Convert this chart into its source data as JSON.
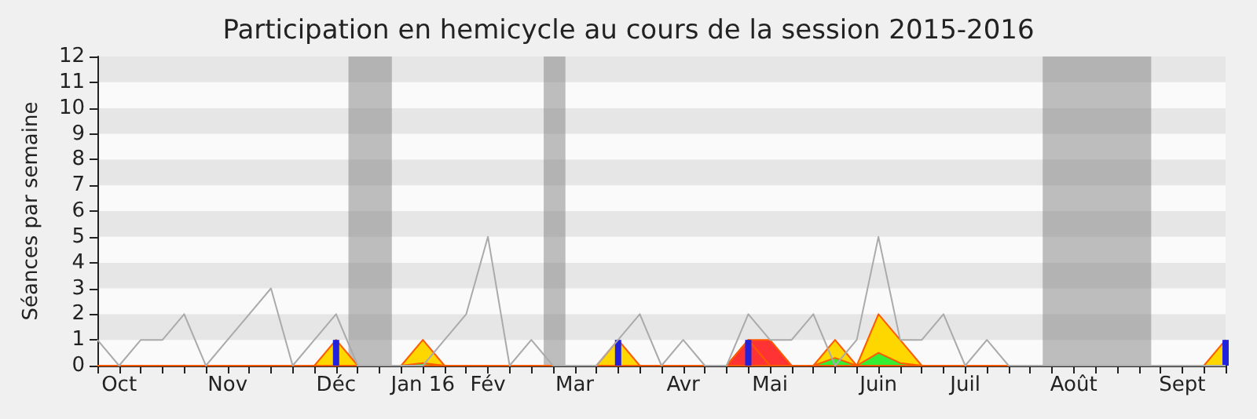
{
  "chart_data": {
    "type": "area",
    "title": "Participation en hemicycle au cours de la session 2015-2016",
    "ylabel": "Séances par semaine",
    "x": [
      "2015-09-29",
      "2015-10-06",
      "2015-10-13",
      "2015-10-20",
      "2015-10-27",
      "2015-11-03",
      "2015-11-10",
      "2015-11-17",
      "2015-11-24",
      "2015-12-01",
      "2015-12-08",
      "2015-12-15",
      "2015-12-22",
      "2015-12-29",
      "2016-01-05",
      "2016-01-12",
      "2016-01-19",
      "2016-01-26",
      "2016-02-02",
      "2016-02-09",
      "2016-02-16",
      "2016-02-23",
      "2016-03-01",
      "2016-03-08",
      "2016-03-15",
      "2016-03-22",
      "2016-03-29",
      "2016-04-05",
      "2016-04-12",
      "2016-04-19",
      "2016-04-26",
      "2016-05-03",
      "2016-05-10",
      "2016-05-17",
      "2016-05-24",
      "2016-05-31",
      "2016-06-07",
      "2016-06-14",
      "2016-06-21",
      "2016-06-28",
      "2016-07-05",
      "2016-07-12",
      "2016-07-19",
      "2016-07-26",
      "2016-08-02",
      "2016-08-09",
      "2016-08-16",
      "2016-08-23",
      "2016-08-30",
      "2016-09-06",
      "2016-09-13",
      "2016-09-20",
      "2016-09-27"
    ],
    "xlim": [
      "2015-09-29",
      "2016-09-27"
    ],
    "xticks": [
      {
        "value": "2015-09-29",
        "label": null
      },
      {
        "value": "2015-10-06",
        "label": "Oct"
      },
      {
        "value": "2015-10-13",
        "label": null
      },
      {
        "value": "2015-10-20",
        "label": null
      },
      {
        "value": "2015-10-27",
        "label": null
      },
      {
        "value": "2015-11-03",
        "label": null
      },
      {
        "value": "2015-11-10",
        "label": "Nov"
      },
      {
        "value": "2015-11-17",
        "label": null
      },
      {
        "value": "2015-11-24",
        "label": null
      },
      {
        "value": "2015-12-01",
        "label": null
      },
      {
        "value": "2015-12-08",
        "label": null
      },
      {
        "value": "2015-12-15",
        "label": "Déc"
      },
      {
        "value": "2015-12-22",
        "label": null
      },
      {
        "value": "2015-12-29",
        "label": null
      },
      {
        "value": "2016-01-05",
        "label": null
      },
      {
        "value": "2016-01-12",
        "label": "Jan 16"
      },
      {
        "value": "2016-01-19",
        "label": null
      },
      {
        "value": "2016-01-26",
        "label": null
      },
      {
        "value": "2016-02-02",
        "label": "Fév"
      },
      {
        "value": "2016-02-09",
        "label": null
      },
      {
        "value": "2016-02-16",
        "label": null
      },
      {
        "value": "2016-02-23",
        "label": null
      },
      {
        "value": "2016-03-01",
        "label": "Mar"
      },
      {
        "value": "2016-03-08",
        "label": null
      },
      {
        "value": "2016-03-15",
        "label": null
      },
      {
        "value": "2016-03-22",
        "label": null
      },
      {
        "value": "2016-03-29",
        "label": null
      },
      {
        "value": "2016-04-05",
        "label": "Avr"
      },
      {
        "value": "2016-04-12",
        "label": null
      },
      {
        "value": "2016-04-19",
        "label": null
      },
      {
        "value": "2016-04-26",
        "label": null
      },
      {
        "value": "2016-05-03",
        "label": "Mai"
      },
      {
        "value": "2016-05-10",
        "label": null
      },
      {
        "value": "2016-05-17",
        "label": null
      },
      {
        "value": "2016-05-24",
        "label": null
      },
      {
        "value": "2016-05-31",
        "label": null
      },
      {
        "value": "2016-06-07",
        "label": "Juin"
      },
      {
        "value": "2016-06-14",
        "label": null
      },
      {
        "value": "2016-06-21",
        "label": null
      },
      {
        "value": "2016-06-28",
        "label": null
      },
      {
        "value": "2016-07-05",
        "label": "Juil"
      },
      {
        "value": "2016-07-12",
        "label": null
      },
      {
        "value": "2016-07-19",
        "label": null
      },
      {
        "value": "2016-07-26",
        "label": null
      },
      {
        "value": "2016-08-02",
        "label": null
      },
      {
        "value": "2016-08-09",
        "label": "Août"
      },
      {
        "value": "2016-08-16",
        "label": null
      },
      {
        "value": "2016-08-23",
        "label": null
      },
      {
        "value": "2016-08-30",
        "label": null
      },
      {
        "value": "2016-09-06",
        "label": null
      },
      {
        "value": "2016-09-13",
        "label": "Sept"
      },
      {
        "value": "2016-09-20",
        "label": null
      },
      {
        "value": "2016-09-27",
        "label": null
      }
    ],
    "ylim": [
      0,
      12
    ],
    "yticks": [
      0,
      1,
      2,
      3,
      4,
      5,
      6,
      7,
      8,
      9,
      10,
      11,
      12
    ],
    "bands": [
      {
        "axis": "x",
        "from": "2015-12-19",
        "to": "2016-01-02",
        "color": "#808080"
      },
      {
        "axis": "x",
        "from": "2016-02-20",
        "to": "2016-02-27",
        "color": "#808080"
      },
      {
        "axis": "x",
        "from": "2016-07-30",
        "to": "2016-09-03",
        "color": "#808080"
      }
    ],
    "series": [
      {
        "color": "#ffd700",
        "values": [
          0,
          0,
          0,
          0,
          0,
          0,
          0,
          0,
          0,
          0,
          0,
          1,
          0,
          0,
          0,
          1,
          0,
          0,
          0,
          0,
          0,
          0,
          0,
          0,
          1,
          0,
          0,
          0,
          0,
          0,
          1,
          0,
          0,
          0,
          1,
          0,
          2,
          1,
          0,
          0,
          0,
          0,
          0,
          0,
          0,
          0,
          0,
          0,
          0,
          0,
          0,
          0,
          1
        ]
      },
      {
        "color": "#ff3333",
        "values": [
          0,
          0,
          0,
          0,
          0,
          0,
          0,
          0,
          0,
          0,
          0,
          0,
          0,
          0,
          0,
          0,
          0,
          0,
          0,
          0,
          0,
          0,
          0,
          0,
          0,
          0,
          0,
          0,
          0,
          0,
          1,
          1,
          0,
          0,
          0,
          0,
          0,
          0,
          0,
          0,
          0,
          0,
          0,
          0,
          0,
          0,
          0,
          0,
          0,
          0,
          0,
          0,
          0
        ]
      },
      {
        "color": "#33ee33",
        "values": [
          0,
          0,
          0,
          0,
          0,
          0,
          0,
          0,
          0,
          0,
          0,
          0,
          0,
          0,
          0,
          0.1,
          0,
          0,
          0,
          0,
          0,
          0,
          0,
          0,
          0,
          0,
          0,
          0,
          0,
          0,
          0,
          0,
          0,
          0,
          0.3,
          0,
          0.5,
          0.1,
          0,
          0,
          0,
          0,
          0,
          0,
          0,
          0,
          0,
          0,
          0,
          0,
          0,
          0,
          0
        ]
      },
      {
        "type": "bar",
        "color": "#2222dd",
        "values": [
          null,
          null,
          null,
          null,
          null,
          null,
          null,
          null,
          null,
          null,
          null,
          1,
          null,
          null,
          null,
          null,
          null,
          null,
          null,
          null,
          null,
          null,
          null,
          null,
          1,
          null,
          null,
          null,
          null,
          null,
          1,
          null,
          null,
          null,
          null,
          null,
          null,
          null,
          null,
          null,
          null,
          null,
          null,
          null,
          null,
          null,
          null,
          null,
          null,
          null,
          null,
          null,
          1
        ]
      },
      {
        "type": "line",
        "color": "#aaaaaa",
        "values": [
          1,
          0,
          1,
          1,
          2,
          0,
          1,
          2,
          3,
          0,
          1,
          2,
          0,
          0,
          0,
          0,
          1,
          2,
          5,
          0,
          1,
          0,
          0,
          0,
          1,
          2,
          0,
          1,
          0,
          0,
          2,
          1,
          1,
          2,
          0,
          1,
          5,
          1,
          1,
          2,
          0,
          1,
          0,
          0,
          0,
          0,
          0,
          0,
          0,
          0,
          0,
          0,
          0
        ]
      }
    ]
  }
}
